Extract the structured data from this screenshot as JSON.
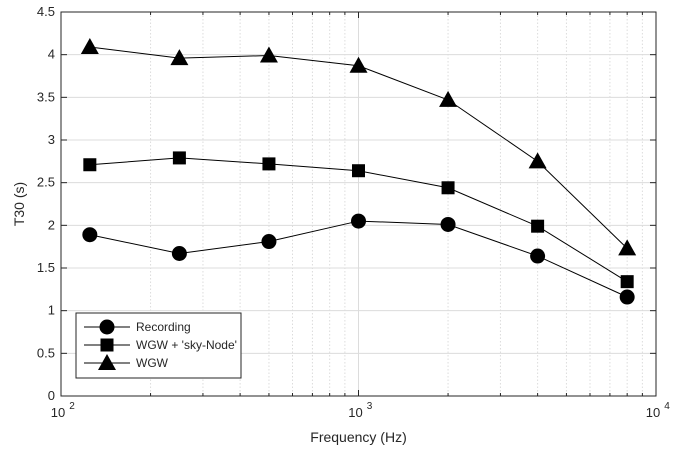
{
  "chart_data": {
    "type": "line",
    "xscale": "log",
    "x": [
      125,
      250,
      500,
      1000,
      2000,
      4000,
      8000
    ],
    "series": [
      {
        "name": "Recording",
        "marker": "circle",
        "values": [
          1.89,
          1.67,
          1.81,
          2.05,
          2.01,
          1.64,
          1.16
        ]
      },
      {
        "name": "WGW + 'sky-Node'",
        "marker": "square",
        "values": [
          2.71,
          2.79,
          2.72,
          2.64,
          2.44,
          1.99,
          1.34
        ]
      },
      {
        "name": "WGW",
        "marker": "triangle",
        "values": [
          4.09,
          3.96,
          3.99,
          3.87,
          3.47,
          2.75,
          1.73
        ]
      }
    ],
    "xlabel": "Frequency (Hz)",
    "ylabel": "T30 (s)",
    "xlim": [
      100,
      10000
    ],
    "ylim": [
      0,
      4.5
    ],
    "yticks": [
      "0",
      "0.5",
      "1",
      "1.5",
      "2",
      "2.5",
      "3",
      "3.5",
      "4",
      "4.5"
    ],
    "xticks": [
      {
        "value": 100,
        "base": "10",
        "exp": "2"
      },
      {
        "value": 1000,
        "base": "10",
        "exp": "3"
      },
      {
        "value": 10000,
        "base": "10",
        "exp": "4"
      }
    ],
    "grid": true,
    "legend_position": "bottom-left",
    "colors": {
      "line": "#000000",
      "grid": "#dcdcdc",
      "axis": "#262626"
    }
  }
}
